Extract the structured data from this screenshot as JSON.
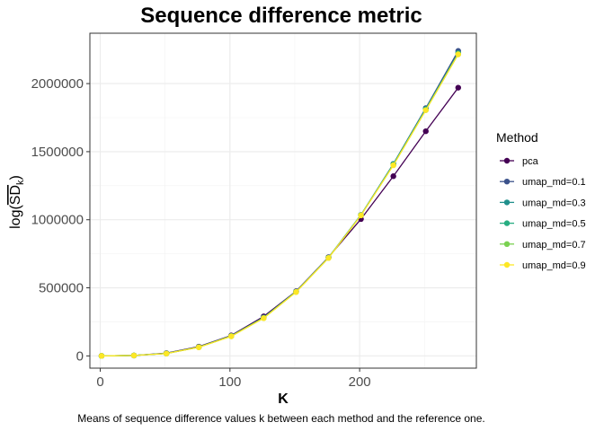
{
  "chart_data": {
    "type": "line",
    "title": "Sequence difference metric",
    "xlabel": "K",
    "ylabel": "log(SD_k)",
    "caption": "Means of sequence difference values k  between each method and the reference one.",
    "legend_title": "Method",
    "legend_position": "right",
    "grid": true,
    "xlim": [
      -8,
      290
    ],
    "ylim": [
      -90000,
      2370000
    ],
    "x_ticks": [
      0,
      100,
      200
    ],
    "y_ticks": [
      0,
      500000,
      1000000,
      1500000,
      2000000
    ],
    "x": [
      1,
      26,
      51,
      76,
      101,
      126,
      151,
      176,
      201,
      226,
      251,
      276
    ],
    "series": [
      {
        "name": "pca",
        "color": "#440154",
        "values": [
          0,
          3000,
          20000,
          68000,
          150000,
          290000,
          475000,
          725000,
          1005000,
          1320000,
          1650000,
          1970000
        ]
      },
      {
        "name": "umap_md=0.1",
        "color": "#3B528B",
        "values": [
          0,
          3000,
          18000,
          65000,
          147000,
          282000,
          472000,
          722000,
          1035000,
          1410000,
          1820000,
          2240000
        ]
      },
      {
        "name": "umap_md=0.3",
        "color": "#21908C",
        "values": [
          0,
          3000,
          18000,
          65000,
          146000,
          281000,
          472000,
          722000,
          1035000,
          1410000,
          1815000,
          2225000
        ]
      },
      {
        "name": "umap_md=0.5",
        "color": "#27AD81",
        "values": [
          0,
          3000,
          18000,
          64000,
          145000,
          280000,
          471000,
          721000,
          1035000,
          1405000,
          1810000,
          2220000
        ]
      },
      {
        "name": "umap_md=0.7",
        "color": "#7AD151",
        "values": [
          0,
          3000,
          17000,
          64000,
          145000,
          278000,
          470000,
          720000,
          1033000,
          1402000,
          1805000,
          2215000
        ]
      },
      {
        "name": "umap_md=0.9",
        "color": "#FDE725",
        "values": [
          0,
          3000,
          17000,
          63000,
          144000,
          277000,
          469000,
          719000,
          1032000,
          1400000,
          1805000,
          2215000
        ]
      }
    ]
  }
}
